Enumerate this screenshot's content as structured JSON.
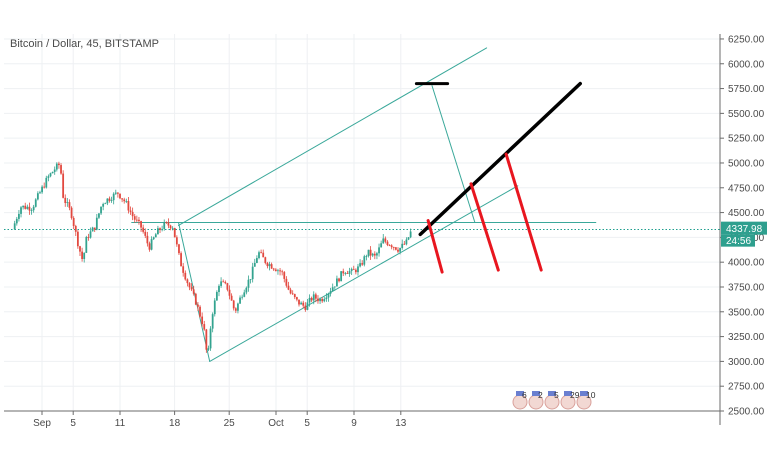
{
  "chart_data": {
    "type": "candlestick",
    "title": "Bitcoin / Dollar, 45, BITSTAMP",
    "ylim": [
      2500,
      6300
    ],
    "y_ticks": [
      6250,
      6000,
      5750,
      5500,
      5250,
      5000,
      4750,
      4500,
      4250,
      4000,
      3750,
      3500,
      3250,
      3000,
      2750,
      2500
    ],
    "y_tick_labels": [
      "6250.00",
      "6000.00",
      "5750.00",
      "5500.00",
      "5250.00",
      "5000.00",
      "4750.00",
      "4500.00",
      "4250.00",
      "4000.00",
      "3750.00",
      "3500.00",
      "3250.00",
      "3000.00",
      "2750.00",
      "2500.00"
    ],
    "x_ticks": [
      {
        "day": 1,
        "label": "Sep"
      },
      {
        "day": 5,
        "label": "5"
      },
      {
        "day": 11,
        "label": "11"
      },
      {
        "day": 18,
        "label": "18"
      },
      {
        "day": 25,
        "label": "25"
      },
      {
        "day": 31,
        "label": "Oct"
      },
      {
        "day": 35,
        "label": "5"
      },
      {
        "day": 41,
        "label": "9"
      },
      {
        "day": 47,
        "label": "13"
      }
    ],
    "x_range": [
      -2.5,
      50
    ],
    "price_label": "4337.98",
    "countdown_label": "24:56",
    "current_price": 4337.98,
    "price_path": [
      [
        -2.5,
        4330
      ],
      [
        -1.5,
        4560
      ],
      [
        0,
        4550
      ],
      [
        1,
        4700
      ],
      [
        2,
        4850
      ],
      [
        3,
        4950
      ],
      [
        3.6,
        4990
      ],
      [
        4,
        4650
      ],
      [
        5,
        4500
      ],
      [
        6,
        4150
      ],
      [
        6.5,
        4010
      ],
      [
        7,
        4250
      ],
      [
        8,
        4350
      ],
      [
        9,
        4600
      ],
      [
        10,
        4650
      ],
      [
        11,
        4700
      ],
      [
        12,
        4600
      ],
      [
        13,
        4450
      ],
      [
        14,
        4350
      ],
      [
        15,
        4150
      ],
      [
        16,
        4300
      ],
      [
        17,
        4380
      ],
      [
        18,
        4370
      ],
      [
        19,
        4000
      ],
      [
        20,
        3780
      ],
      [
        21,
        3600
      ],
      [
        22,
        3350
      ],
      [
        22.5,
        3000
      ],
      [
        23,
        3450
      ],
      [
        24,
        3800
      ],
      [
        25,
        3750
      ],
      [
        26,
        3500
      ],
      [
        27,
        3700
      ],
      [
        28,
        3850
      ],
      [
        29,
        4100
      ],
      [
        30,
        4000
      ],
      [
        31,
        3950
      ],
      [
        32,
        3900
      ],
      [
        33,
        3700
      ],
      [
        34,
        3600
      ],
      [
        35,
        3550
      ],
      [
        36,
        3650
      ],
      [
        37,
        3620
      ],
      [
        38,
        3700
      ],
      [
        39,
        3800
      ],
      [
        40,
        3920
      ],
      [
        41,
        3900
      ],
      [
        42,
        3950
      ],
      [
        43,
        4100
      ],
      [
        44,
        4050
      ],
      [
        45,
        4220
      ],
      [
        46,
        4180
      ],
      [
        47,
        4130
      ],
      [
        48,
        4200
      ],
      [
        48.5,
        4300
      ]
    ],
    "drawings": {
      "channel_lower": [
        [
          22.5,
          3000
        ],
        [
          62,
          4770
        ]
      ],
      "channel_upper": [
        [
          18.5,
          4370
        ],
        [
          58,
          6160
        ]
      ],
      "horizontal_line": [
        [
          12.5,
          4400
        ],
        [
          72,
          4400
        ]
      ],
      "low_connector": [
        [
          18.5,
          4400
        ],
        [
          22.5,
          3000
        ]
      ],
      "target_connector": [
        [
          51,
          5780
        ],
        [
          56.5,
          4400
        ]
      ],
      "target_mark": [
        [
          49,
          5800
        ],
        [
          53,
          5800
        ]
      ],
      "dotted_price_line": 4330,
      "black_projection": [
        [
          49.5,
          4280
        ],
        [
          70,
          5800
        ]
      ],
      "red_lines": [
        [
          [
            50.5,
            4420
          ],
          [
            52.3,
            3900
          ]
        ],
        [
          [
            56,
            4790
          ],
          [
            59.5,
            3920
          ]
        ],
        [
          [
            60.5,
            5090
          ],
          [
            65,
            3920
          ]
        ]
      ]
    },
    "events": [
      "6",
      "2",
      "5",
      "29",
      "10"
    ]
  }
}
